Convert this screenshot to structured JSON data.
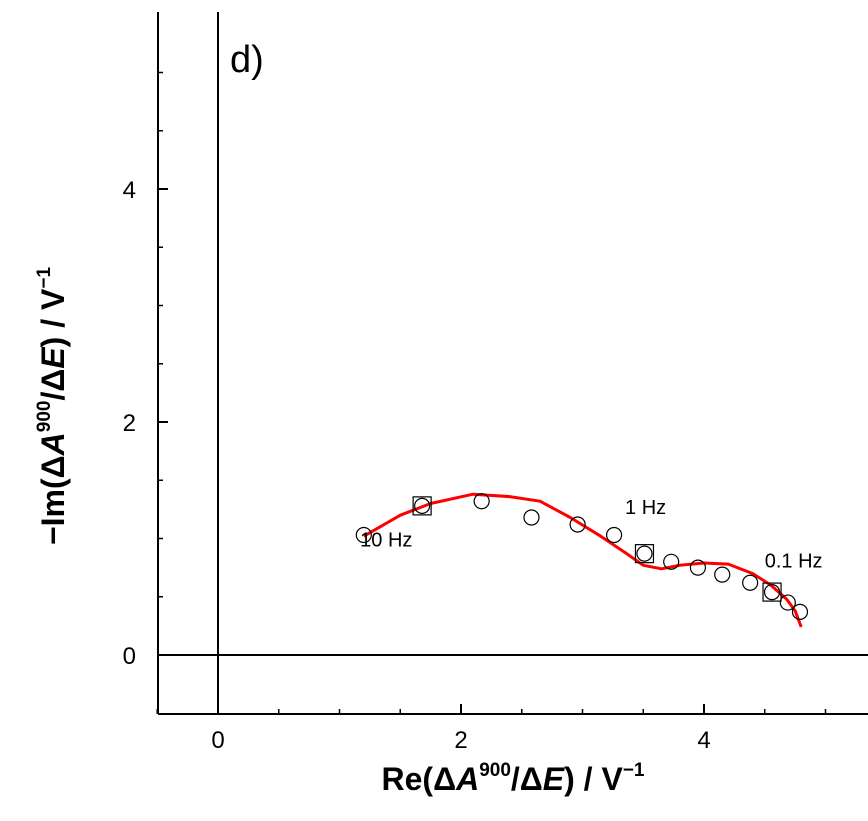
{
  "chart_data": {
    "type": "scatter",
    "panel_label": "d)",
    "xlabel": {
      "pre": "Re(",
      "delta1": "Δ",
      "var1": "A",
      "sup1": "900",
      "mid": "/",
      "delta2": "Δ",
      "var2": "E",
      "post": ") / V",
      "unit_sup": "−1"
    },
    "ylabel": {
      "pre": "−Im(",
      "delta1": "Δ",
      "var1": "A",
      "sup1": "900",
      "mid": "/",
      "delta2": "Δ",
      "var2": "E",
      "post": ") / V",
      "unit_sup": "−1"
    },
    "xlim": [
      -0.6,
      5.3
    ],
    "ylim": [
      -0.5,
      5.4
    ],
    "x_ticks": [
      0,
      2,
      4
    ],
    "y_ticks": [
      0,
      2,
      4
    ],
    "x_minor_ticks": [
      -0.5,
      0.5,
      1,
      1.5,
      2.5,
      3,
      3.5,
      4.5,
      5
    ],
    "y_minor_ticks": [
      0.5,
      1,
      1.5,
      2.5,
      3,
      3.5,
      4.5,
      5
    ],
    "series": [
      {
        "marker": "circle",
        "x": [
          1.2,
          1.68,
          2.17,
          2.58,
          2.96,
          3.26,
          3.51,
          3.73,
          3.95,
          4.15,
          4.38,
          4.56,
          4.69,
          4.79
        ],
        "y": [
          1.03,
          1.28,
          1.32,
          1.18,
          1.12,
          1.03,
          0.87,
          0.8,
          0.75,
          0.69,
          0.62,
          0.54,
          0.45,
          0.37
        ]
      },
      {
        "marker": "square",
        "x": [
          1.68,
          3.51,
          4.56
        ],
        "y": [
          1.28,
          0.87,
          0.54
        ]
      },
      {
        "marker": "line",
        "color": "#ff0000",
        "x": [
          1.2,
          1.5,
          1.75,
          2.1,
          2.4,
          2.65,
          2.9,
          3.15,
          3.35,
          3.5,
          3.65,
          3.8,
          4.0,
          4.2,
          4.4,
          4.55,
          4.68,
          4.75,
          4.8
        ],
        "y": [
          1.02,
          1.2,
          1.3,
          1.38,
          1.36,
          1.32,
          1.18,
          1.02,
          0.88,
          0.77,
          0.74,
          0.77,
          0.79,
          0.78,
          0.7,
          0.6,
          0.48,
          0.38,
          0.24
        ]
      }
    ],
    "annotations": [
      {
        "text": "10 Hz",
        "x": 1.17,
        "y": 0.93
      },
      {
        "text": "1 Hz",
        "x": 3.35,
        "y": 1.21
      },
      {
        "text": "0.1 Hz",
        "x": 4.5,
        "y": 0.75
      }
    ]
  }
}
